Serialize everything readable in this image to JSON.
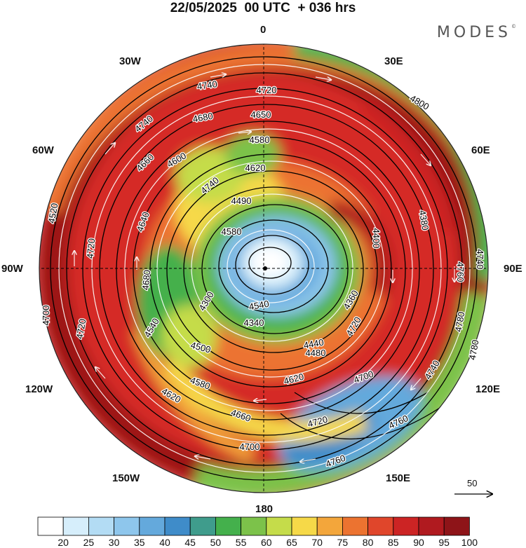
{
  "title": "22/05/2025  00 UTC  + 036 hrs",
  "brand": "MODES",
  "brand_mark": "©",
  "longitude_labels": {
    "n": "0",
    "s": "180",
    "w30": "30W",
    "e30": "30E",
    "w60": "60W",
    "e60": "60E",
    "w90": "90W",
    "e90": "90E",
    "w120": "120W",
    "e120": "120E",
    "w150": "150W",
    "e150": "150E"
  },
  "reference_vector": "50",
  "colorbar": {
    "labels": [
      "20",
      "25",
      "30",
      "35",
      "40",
      "45",
      "50",
      "55",
      "60",
      "65",
      "70",
      "75",
      "80",
      "85",
      "90",
      "95",
      "100"
    ],
    "colors": [
      "#ffffff",
      "#d6eefb",
      "#b3dcf4",
      "#8ec6ec",
      "#64a9dc",
      "#3f8cc9",
      "#3f9c8c",
      "#44b04c",
      "#7cc24a",
      "#c5dc4a",
      "#f6d948",
      "#f3a63b",
      "#ec7330",
      "#e0462b",
      "#cc2424",
      "#b01a1f",
      "#8e1418"
    ]
  },
  "contour_labels": [
    {
      "text": "4740",
      "color": "black"
    },
    {
      "text": "4720",
      "color": "black"
    },
    {
      "text": "4680",
      "color": "black"
    },
    {
      "text": "4650",
      "color": "black"
    },
    {
      "text": "4580",
      "color": "black"
    },
    {
      "text": "4800",
      "color": "black"
    },
    {
      "text": "4740",
      "color": "black"
    },
    {
      "text": "4660",
      "color": "black"
    },
    {
      "text": "4600",
      "color": "black"
    },
    {
      "text": "4620",
      "color": "black"
    },
    {
      "text": "4740",
      "color": "black"
    },
    {
      "text": "4490",
      "color": "black"
    },
    {
      "text": "4400",
      "color": "black"
    },
    {
      "text": "4520",
      "color": "black"
    },
    {
      "text": "4720",
      "color": "black"
    },
    {
      "text": "4640",
      "color": "black"
    },
    {
      "text": "4580",
      "color": "black"
    },
    {
      "text": "4300",
      "color": "black"
    },
    {
      "text": "4380",
      "color": "black"
    },
    {
      "text": "4740",
      "color": "black"
    },
    {
      "text": "4760",
      "color": "black"
    },
    {
      "text": "4680",
      "color": "black"
    },
    {
      "text": "4540",
      "color": "black"
    },
    {
      "text": "4340",
      "color": "black"
    },
    {
      "text": "4360",
      "color": "black"
    },
    {
      "text": "4440",
      "color": "black"
    },
    {
      "text": "4480",
      "color": "black"
    },
    {
      "text": "4500",
      "color": "black"
    },
    {
      "text": "4540",
      "color": "black"
    },
    {
      "text": "4620",
      "color": "black"
    },
    {
      "text": "4720",
      "color": "black"
    },
    {
      "text": "4780",
      "color": "black"
    },
    {
      "text": "4740",
      "color": "black"
    },
    {
      "text": "4580",
      "color": "black"
    },
    {
      "text": "4620",
      "color": "black"
    },
    {
      "text": "4660",
      "color": "black"
    },
    {
      "text": "4700",
      "color": "black"
    },
    {
      "text": "4720",
      "color": "black"
    },
    {
      "text": "4760",
      "color": "black"
    },
    {
      "text": "4780",
      "color": "black"
    },
    {
      "text": "4700",
      "color": "black"
    },
    {
      "text": "4760",
      "color": "black"
    },
    {
      "text": "4720",
      "color": "black"
    },
    {
      "text": "4700",
      "color": "black"
    }
  ]
}
